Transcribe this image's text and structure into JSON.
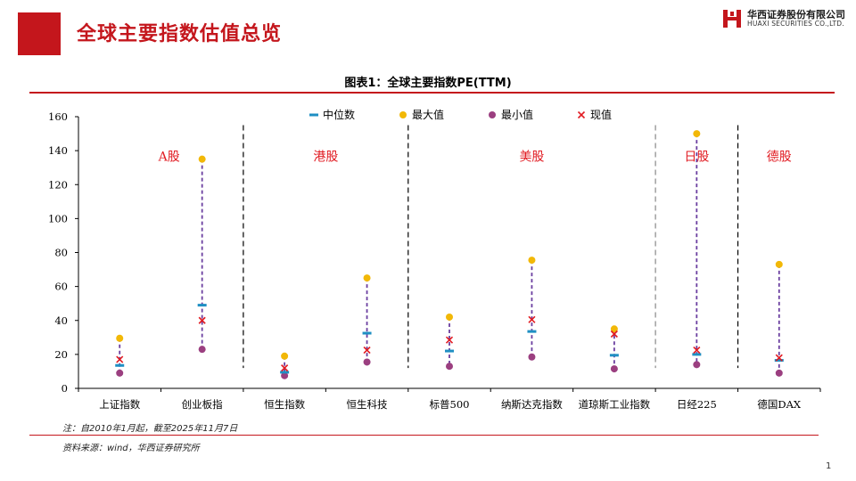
{
  "header": {
    "title": "全球主要指数估值总览",
    "logo_cn": "华西证券股份有限公司",
    "logo_en": "HUAXI SECURITIES CO.,LTD."
  },
  "chart_data": {
    "type": "scatter",
    "title": "图表1：全球主要指数PE(TTM)",
    "ylim": [
      0,
      160
    ],
    "yticks": [
      0,
      20,
      40,
      60,
      80,
      100,
      120,
      140,
      160
    ],
    "legend_position": "top-center",
    "legend": [
      {
        "key": "median",
        "label": "中位数",
        "color": "#1f8fc3"
      },
      {
        "key": "max",
        "label": "最大值",
        "color": "#f2b807"
      },
      {
        "key": "min",
        "label": "最小值",
        "color": "#9b3f80"
      },
      {
        "key": "current",
        "label": "现值",
        "color": "#e11b22"
      }
    ],
    "categories": [
      "上证指数",
      "创业板指",
      "恒生指数",
      "恒生科技",
      "标普500",
      "纳斯达克指数",
      "道琼斯工业指数",
      "日经225",
      "德国DAX"
    ],
    "series": [
      {
        "name": "中位数",
        "values": [
          13.5,
          49,
          9.5,
          32.5,
          22,
          33.5,
          19.5,
          20,
          16.5
        ]
      },
      {
        "name": "最大值",
        "values": [
          29.5,
          135,
          19,
          65,
          42,
          75.5,
          35,
          150,
          73
        ]
      },
      {
        "name": "最小值",
        "values": [
          9,
          23,
          7.5,
          15.5,
          13,
          18.5,
          11.5,
          14,
          9
        ]
      },
      {
        "name": "现值",
        "values": [
          17,
          40,
          12,
          22.5,
          28.5,
          40.5,
          32,
          22.5,
          18
        ]
      }
    ],
    "groups": [
      {
        "label": "A股",
        "from": 0,
        "to": 1
      },
      {
        "label": "港股",
        "from": 2,
        "to": 3
      },
      {
        "label": "美股",
        "from": 4,
        "to": 6
      },
      {
        "label": "日股",
        "from": 7,
        "to": 7
      },
      {
        "label": "德股",
        "from": 8,
        "to": 8
      }
    ],
    "group_label_color": "#e11b22",
    "range_line_color": "#6b3fa0"
  },
  "footnote": "注：自2010年1月起，截至2025年11月7日",
  "source": "资料来源：wind，华西证券研究所",
  "page_number": "1"
}
